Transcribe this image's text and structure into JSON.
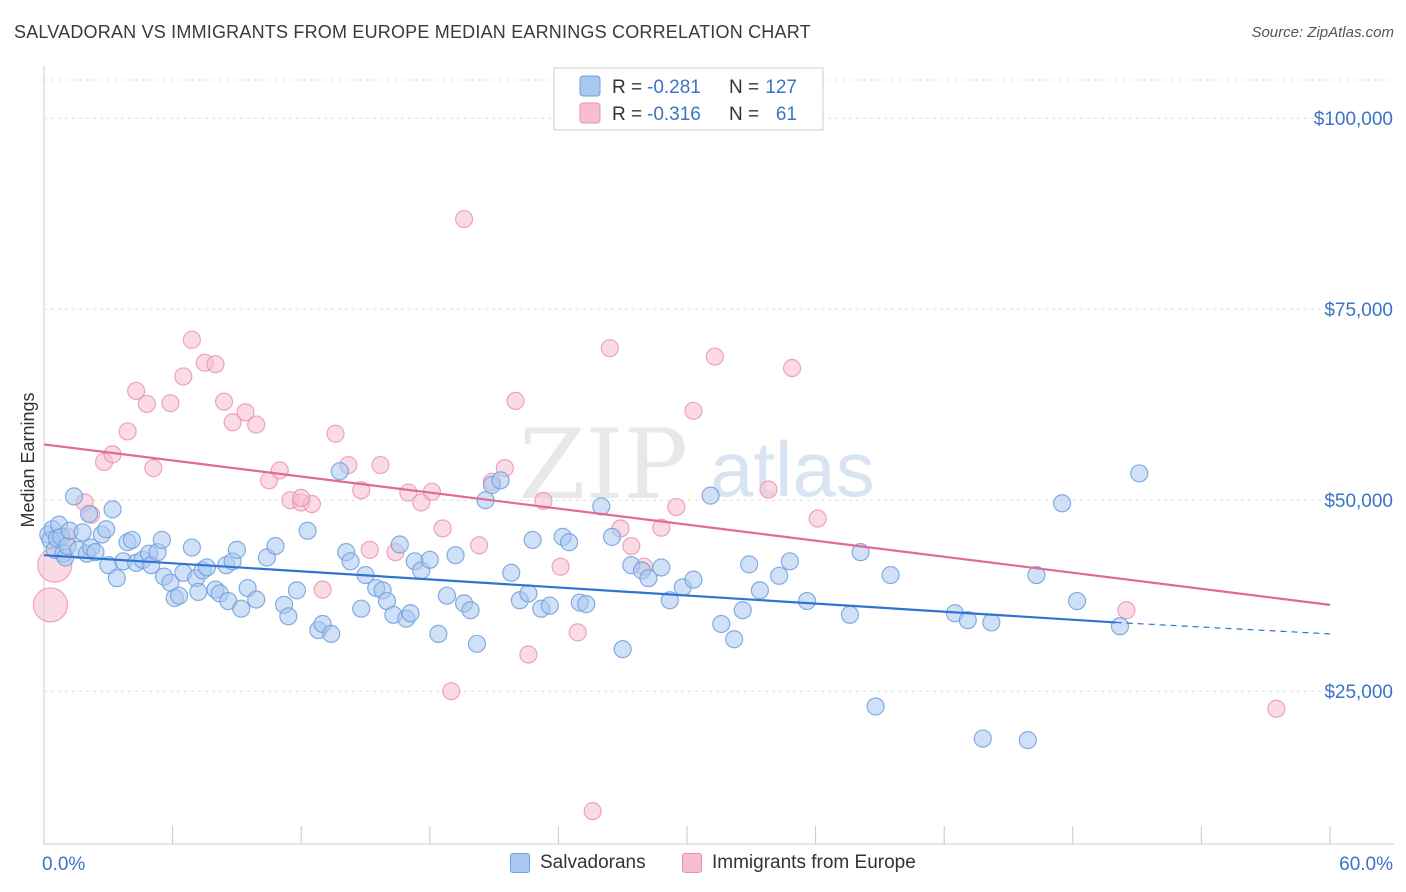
{
  "title": "SALVADORAN VS IMMIGRANTS FROM EUROPE MEDIAN EARNINGS CORRELATION CHART",
  "source": "Source: ZipAtlas.com",
  "watermark": {
    "zip": "ZIP",
    "atlas": "atlas"
  },
  "colors": {
    "blue_fill": "#a9c8f0",
    "blue_stroke": "#6fa0dd",
    "blue_line": "#2f74d0",
    "pink_fill": "#f6bed0",
    "pink_stroke": "#ec8fae",
    "pink_line": "#e06a93",
    "axis_label": "#3b74c6",
    "grid": "#dddddd"
  },
  "legend": {
    "rows": [
      {
        "r_label": "R = ",
        "r_value": "-0.281",
        "n_label": "N = ",
        "n_value": "127"
      },
      {
        "r_label": "R = ",
        "r_value": "-0.316",
        "n_label": "N = ",
        "n_value": "61"
      }
    ],
    "bottom": [
      "Salvadorans",
      "Immigrants from Europe"
    ]
  },
  "chart_data": {
    "type": "scatter",
    "title": "SALVADORAN VS IMMIGRANTS FROM EUROPE MEDIAN EARNINGS CORRELATION CHART",
    "xlabel": "",
    "ylabel": "Median Earnings",
    "xlim": [
      0,
      60
    ],
    "ylim": [
      5000,
      105000
    ],
    "x_tick_labels": [
      "0.0%",
      "60.0%"
    ],
    "y_ticks": [
      {
        "value": 25000,
        "label": "$25,000"
      },
      {
        "value": 50000,
        "label": "$50,000"
      },
      {
        "value": 75000,
        "label": "$75,000"
      },
      {
        "value": 100000,
        "label": "$100,000"
      }
    ],
    "grid": true,
    "legend_position": "top-center",
    "series": [
      {
        "name": "Salvadorans",
        "r": -0.281,
        "n": 127,
        "trend": {
          "x0": 0,
          "y0": 42800,
          "x1": 50,
          "y1": 34000,
          "dashed_to_x": 60,
          "dashed_to_y": 32500
        },
        "points": [
          [
            0.2,
            45500
          ],
          [
            0.3,
            44800
          ],
          [
            0.4,
            46200
          ],
          [
            0.5,
            43500
          ],
          [
            0.6,
            45000
          ],
          [
            0.7,
            46800
          ],
          [
            0.8,
            45200
          ],
          [
            0.9,
            43000
          ],
          [
            1.0,
            42500
          ],
          [
            1.1,
            44000
          ],
          [
            1.2,
            46000
          ],
          [
            1.4,
            50500
          ],
          [
            1.6,
            43500
          ],
          [
            1.8,
            45800
          ],
          [
            2.0,
            43000
          ],
          [
            2.1,
            48200
          ],
          [
            2.2,
            43800
          ],
          [
            2.4,
            43200
          ],
          [
            2.7,
            45500
          ],
          [
            2.9,
            46200
          ],
          [
            3.0,
            41500
          ],
          [
            3.2,
            48800
          ],
          [
            3.4,
            39800
          ],
          [
            3.7,
            42000
          ],
          [
            3.9,
            44500
          ],
          [
            4.1,
            44800
          ],
          [
            4.3,
            41800
          ],
          [
            4.6,
            42200
          ],
          [
            4.9,
            43000
          ],
          [
            5.0,
            41500
          ],
          [
            5.3,
            43200
          ],
          [
            5.5,
            44800
          ],
          [
            5.6,
            40000
          ],
          [
            5.9,
            39200
          ],
          [
            6.1,
            37200
          ],
          [
            6.3,
            37500
          ],
          [
            6.5,
            40500
          ],
          [
            6.9,
            43800
          ],
          [
            7.1,
            39800
          ],
          [
            7.2,
            38000
          ],
          [
            7.4,
            40800
          ],
          [
            7.6,
            41200
          ],
          [
            8.0,
            38300
          ],
          [
            8.2,
            37800
          ],
          [
            8.5,
            41500
          ],
          [
            8.6,
            36800
          ],
          [
            8.8,
            42000
          ],
          [
            9.0,
            43500
          ],
          [
            9.2,
            35800
          ],
          [
            9.5,
            38500
          ],
          [
            9.9,
            37000
          ],
          [
            10.4,
            42500
          ],
          [
            10.8,
            44000
          ],
          [
            11.2,
            36300
          ],
          [
            11.4,
            34800
          ],
          [
            11.8,
            38200
          ],
          [
            12.3,
            46000
          ],
          [
            12.8,
            33000
          ],
          [
            13.0,
            33800
          ],
          [
            13.4,
            32500
          ],
          [
            13.8,
            53800
          ],
          [
            14.1,
            43200
          ],
          [
            14.3,
            42000
          ],
          [
            14.8,
            35800
          ],
          [
            15.0,
            40200
          ],
          [
            15.5,
            38500
          ],
          [
            15.8,
            38200
          ],
          [
            16.0,
            36800
          ],
          [
            16.3,
            35000
          ],
          [
            16.6,
            44200
          ],
          [
            16.9,
            34500
          ],
          [
            17.1,
            35200
          ],
          [
            17.3,
            42000
          ],
          [
            17.6,
            40800
          ],
          [
            18.0,
            42200
          ],
          [
            18.4,
            32500
          ],
          [
            18.8,
            37500
          ],
          [
            19.2,
            42800
          ],
          [
            19.6,
            36500
          ],
          [
            19.9,
            35600
          ],
          [
            20.2,
            31200
          ],
          [
            20.6,
            50000
          ],
          [
            20.9,
            52000
          ],
          [
            21.3,
            52600
          ],
          [
            21.8,
            40500
          ],
          [
            22.2,
            36900
          ],
          [
            22.6,
            37800
          ],
          [
            22.8,
            44800
          ],
          [
            23.2,
            35800
          ],
          [
            23.6,
            36200
          ],
          [
            24.2,
            45200
          ],
          [
            24.5,
            44500
          ],
          [
            25.0,
            36600
          ],
          [
            25.3,
            36400
          ],
          [
            26.0,
            49200
          ],
          [
            26.5,
            45200
          ],
          [
            27.0,
            30500
          ],
          [
            27.4,
            41500
          ],
          [
            27.9,
            40800
          ],
          [
            28.2,
            39800
          ],
          [
            28.8,
            41200
          ],
          [
            29.2,
            36900
          ],
          [
            29.8,
            38600
          ],
          [
            30.3,
            39600
          ],
          [
            31.1,
            50600
          ],
          [
            31.6,
            33800
          ],
          [
            32.2,
            31800
          ],
          [
            32.6,
            35600
          ],
          [
            32.9,
            41600
          ],
          [
            33.4,
            38200
          ],
          [
            34.3,
            40100
          ],
          [
            34.8,
            42000
          ],
          [
            35.6,
            36800
          ],
          [
            37.6,
            35000
          ],
          [
            38.1,
            43200
          ],
          [
            38.8,
            23000
          ],
          [
            39.5,
            40200
          ],
          [
            42.5,
            35200
          ],
          [
            43.1,
            34300
          ],
          [
            43.8,
            18800
          ],
          [
            44.2,
            34000
          ],
          [
            45.9,
            18600
          ],
          [
            46.3,
            40200
          ],
          [
            47.5,
            49600
          ],
          [
            48.2,
            36800
          ],
          [
            50.2,
            33500
          ],
          [
            51.1,
            53500
          ]
        ]
      },
      {
        "name": "Immigrants from Europe",
        "r": -0.316,
        "n": 61,
        "trend": {
          "x0": 0,
          "y0": 57300,
          "x1": 60,
          "y1": 36300
        },
        "points": [
          [
            0.3,
            36300
          ],
          [
            0.5,
            41500
          ],
          [
            1.1,
            45200
          ],
          [
            1.9,
            49700
          ],
          [
            2.2,
            48100
          ],
          [
            2.8,
            55000
          ],
          [
            3.2,
            56000
          ],
          [
            3.9,
            59000
          ],
          [
            4.3,
            64300
          ],
          [
            4.8,
            62600
          ],
          [
            5.1,
            54200
          ],
          [
            5.9,
            62700
          ],
          [
            6.5,
            66200
          ],
          [
            6.9,
            71000
          ],
          [
            7.5,
            68000
          ],
          [
            8.0,
            67800
          ],
          [
            8.4,
            62900
          ],
          [
            8.8,
            60200
          ],
          [
            9.4,
            61500
          ],
          [
            9.9,
            59900
          ],
          [
            10.5,
            52600
          ],
          [
            11.0,
            53900
          ],
          [
            11.5,
            50000
          ],
          [
            12.0,
            49700
          ],
          [
            12.5,
            49500
          ],
          [
            13.0,
            38300
          ],
          [
            13.6,
            58700
          ],
          [
            14.2,
            54600
          ],
          [
            14.8,
            51300
          ],
          [
            15.2,
            43500
          ],
          [
            15.7,
            54600
          ],
          [
            16.4,
            43200
          ],
          [
            17.0,
            51000
          ],
          [
            17.6,
            49700
          ],
          [
            18.1,
            51100
          ],
          [
            18.6,
            46300
          ],
          [
            19.0,
            25000
          ],
          [
            19.6,
            86800
          ],
          [
            20.3,
            44100
          ],
          [
            20.9,
            52400
          ],
          [
            21.5,
            54200
          ],
          [
            22.0,
            63000
          ],
          [
            22.6,
            29800
          ],
          [
            23.3,
            49900
          ],
          [
            24.1,
            41300
          ],
          [
            24.9,
            32700
          ],
          [
            25.6,
            9300
          ],
          [
            26.4,
            69900
          ],
          [
            26.9,
            46300
          ],
          [
            27.4,
            44000
          ],
          [
            28.0,
            41300
          ],
          [
            28.8,
            46400
          ],
          [
            29.5,
            49100
          ],
          [
            30.3,
            61700
          ],
          [
            31.3,
            68800
          ],
          [
            33.8,
            51400
          ],
          [
            34.9,
            67300
          ],
          [
            36.1,
            47600
          ],
          [
            50.5,
            35600
          ],
          [
            57.5,
            22700
          ],
          [
            12.0,
            50300
          ]
        ]
      }
    ]
  }
}
